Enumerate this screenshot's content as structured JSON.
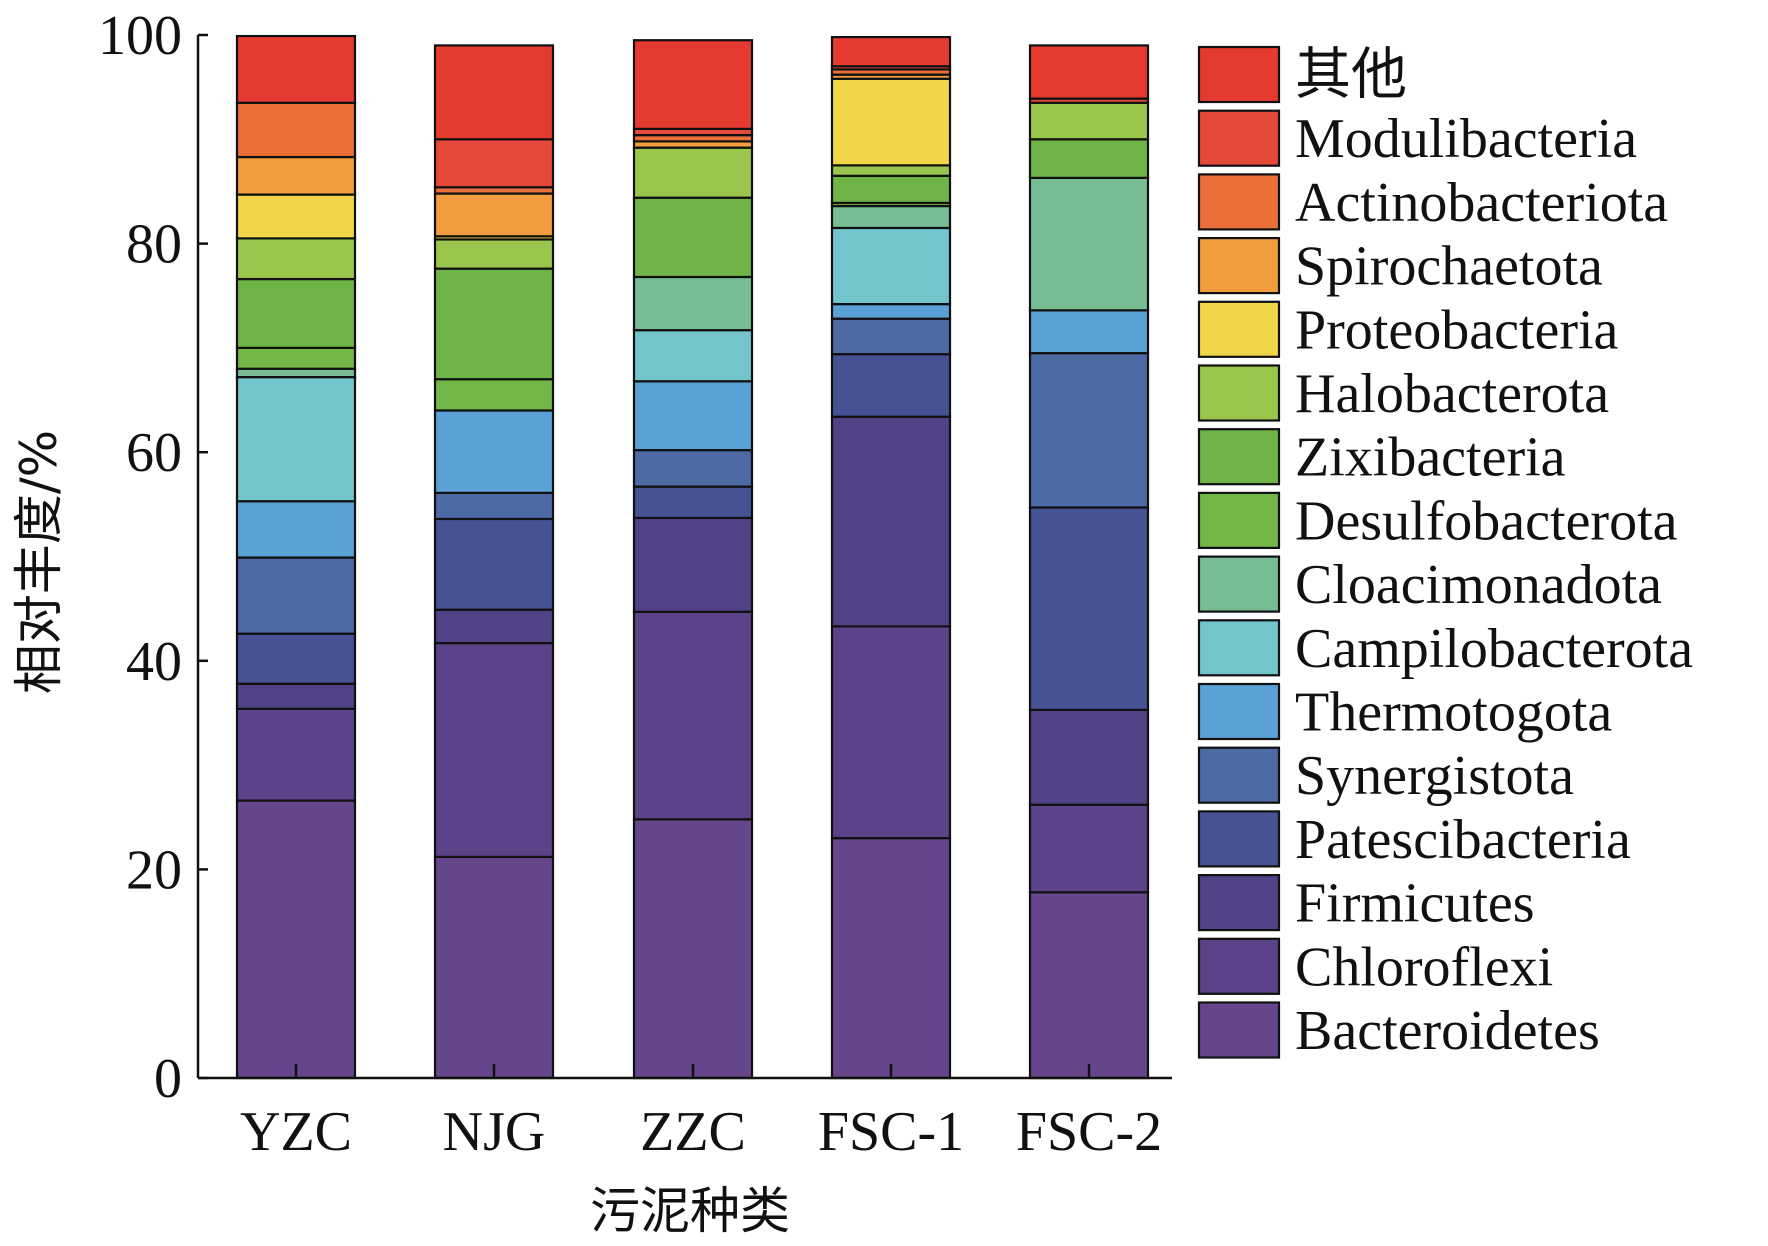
{
  "chart_data": {
    "type": "bar",
    "stacked": true,
    "xlabel": "污泥种类",
    "ylabel": "相对丰度/%",
    "ylim": [
      0,
      100
    ],
    "yticks": [
      0,
      20,
      40,
      60,
      80,
      100
    ],
    "grid": false,
    "legend_position": "right",
    "categories": [
      "YZC",
      "NJG",
      "ZZC",
      "FSC-1",
      "FSC-2"
    ],
    "series": [
      {
        "name": "Bacteroidetes",
        "color": "#66468b",
        "values": [
          26.6,
          21.2,
          24.8,
          23.0,
          17.8
        ]
      },
      {
        "name": "Chloroflexi",
        "color": "#5b4289",
        "values": [
          8.8,
          20.5,
          19.9,
          20.3,
          8.4
        ]
      },
      {
        "name": "Firmicutes",
        "color": "#514288",
        "values": [
          2.4,
          3.2,
          9.0,
          20.1,
          9.1
        ]
      },
      {
        "name": "Patescibacteria",
        "color": "#465293",
        "values": [
          4.8,
          8.7,
          3.0,
          6.0,
          19.4
        ]
      },
      {
        "name": "Synergistota",
        "color": "#4d6aa5",
        "values": [
          7.3,
          2.5,
          3.5,
          3.4,
          14.8
        ]
      },
      {
        "name": "Thermotogota",
        "color": "#5aa2d5",
        "values": [
          5.4,
          7.9,
          6.6,
          1.4,
          4.1
        ]
      },
      {
        "name": "Campilobacterota",
        "color": "#72c4cd",
        "values": [
          11.9,
          0.0,
          4.9,
          7.3,
          0.0
        ]
      },
      {
        "name": "Cloacimonadota",
        "color": "#77bd93",
        "values": [
          0.8,
          0.0,
          5.1,
          2.1,
          12.7
        ]
      },
      {
        "name": "Desulfobacterota",
        "color": "#73b749",
        "values": [
          2.0,
          3.0,
          0.0,
          0.3,
          0.0
        ]
      },
      {
        "name": "Zixibacteria",
        "color": "#6fb446",
        "values": [
          6.6,
          10.6,
          7.6,
          2.6,
          3.7
        ]
      },
      {
        "name": "Halobacterota",
        "color": "#9bc64d",
        "values": [
          3.9,
          2.8,
          4.8,
          1.0,
          3.5
        ]
      },
      {
        "name": "Proteobacteria",
        "color": "#f0d648",
        "values": [
          4.2,
          0.3,
          0.0,
          8.3,
          0.0
        ]
      },
      {
        "name": "Spirochaetota",
        "color": "#f29d3d",
        "values": [
          3.6,
          4.1,
          0.6,
          0.4,
          0.0
        ]
      },
      {
        "name": "Actinobacteriota",
        "color": "#ea6f38",
        "values": [
          5.2,
          0.6,
          0.6,
          0.5,
          0.0
        ]
      },
      {
        "name": "Modulibacteria",
        "color": "#e4493a",
        "values": [
          0.0,
          4.6,
          0.6,
          0.3,
          0.4
        ]
      },
      {
        "name": "其他",
        "color": "#e53a2f",
        "values": [
          6.4,
          9.0,
          8.5,
          2.8,
          5.1
        ]
      }
    ]
  }
}
